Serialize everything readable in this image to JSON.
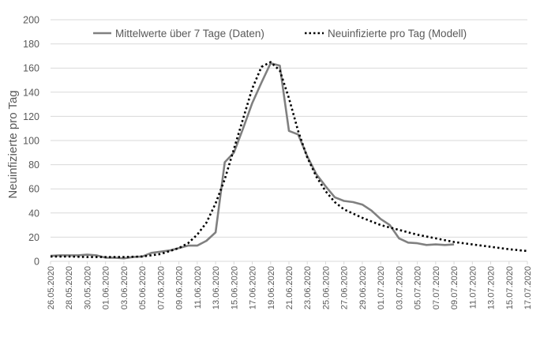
{
  "chart_data": {
    "type": "line",
    "title": "",
    "xlabel": "",
    "ylabel": "Neuinfizierte pro Tag",
    "ylim": [
      0,
      200
    ],
    "yticks": [
      0,
      20,
      40,
      60,
      80,
      100,
      120,
      140,
      160,
      180,
      200
    ],
    "x_range": [
      "26.05.2020",
      "17.07.2020"
    ],
    "x_tick_labels": [
      "26.05.2020",
      "28.05.2020",
      "30.05.2020",
      "01.06.2020",
      "03.06.2020",
      "05.06.2020",
      "07.06.2020",
      "09.06.2020",
      "11.06.2020",
      "13.06.2020",
      "15.06.2020",
      "17.06.2020",
      "19.06.2020",
      "21.06.2020",
      "23.06.2020",
      "25.06.2020",
      "27.06.2020",
      "29.06.2020",
      "01.07.2020",
      "03.07.2020",
      "05.07.2020",
      "07.07.2020",
      "09.07.2020",
      "11.07.2020",
      "13.07.2020",
      "15.07.2020",
      "17.07.2020"
    ],
    "grid": "horizontal",
    "legend_position": "top",
    "series": [
      {
        "name": "Mittelwerte über 7 Tage (Daten)",
        "style": "solid",
        "color": "#808080",
        "points": [
          [
            "26.05.2020",
            4.5
          ],
          [
            "27.05.2020",
            5
          ],
          [
            "28.05.2020",
            5
          ],
          [
            "29.05.2020",
            5
          ],
          [
            "30.05.2020",
            5.5
          ],
          [
            "31.05.2020",
            5
          ],
          [
            "01.06.2020",
            3
          ],
          [
            "02.06.2020",
            3
          ],
          [
            "03.06.2020",
            2.5
          ],
          [
            "04.06.2020",
            3.5
          ],
          [
            "05.06.2020",
            4
          ],
          [
            "06.06.2020",
            7
          ],
          [
            "07.06.2020",
            8
          ],
          [
            "08.06.2020",
            9
          ],
          [
            "09.06.2020",
            11
          ],
          [
            "10.06.2020",
            13
          ],
          [
            "11.06.2020",
            13
          ],
          [
            "12.06.2020",
            17
          ],
          [
            "13.06.2020",
            24
          ],
          [
            "14.06.2020",
            82
          ],
          [
            "15.06.2020",
            90
          ],
          [
            "16.06.2020",
            110
          ],
          [
            "17.06.2020",
            131
          ],
          [
            "18.06.2020",
            148
          ],
          [
            "19.06.2020",
            164
          ],
          [
            "20.06.2020",
            162
          ],
          [
            "21.06.2020",
            108
          ],
          [
            "22.06.2020",
            105
          ],
          [
            "23.06.2020",
            87
          ],
          [
            "24.06.2020",
            72
          ],
          [
            "25.06.2020",
            62
          ],
          [
            "26.06.2020",
            53
          ],
          [
            "27.06.2020",
            50
          ],
          [
            "28.06.2020",
            49
          ],
          [
            "29.06.2020",
            47
          ],
          [
            "30.06.2020",
            42
          ],
          [
            "01.07.2020",
            35
          ],
          [
            "02.07.2020",
            30
          ],
          [
            "03.07.2020",
            19
          ],
          [
            "04.07.2020",
            15.5
          ],
          [
            "05.07.2020",
            15
          ],
          [
            "06.07.2020",
            13.5
          ],
          [
            "07.07.2020",
            14
          ],
          [
            "08.07.2020",
            13.5
          ],
          [
            "09.07.2020",
            14
          ]
        ]
      },
      {
        "name": "Neuinfizierte pro Tag (Modell)",
        "style": "dotted",
        "color": "#000000",
        "points": [
          [
            "26.05.2020",
            4
          ],
          [
            "28.05.2020",
            4
          ],
          [
            "30.05.2020",
            3.5
          ],
          [
            "01.06.2020",
            3.5
          ],
          [
            "03.06.2020",
            3.5
          ],
          [
            "05.06.2020",
            4
          ],
          [
            "07.06.2020",
            6
          ],
          [
            "09.06.2020",
            11
          ],
          [
            "10.06.2020",
            15
          ],
          [
            "11.06.2020",
            22
          ],
          [
            "12.06.2020",
            32
          ],
          [
            "13.06.2020",
            48
          ],
          [
            "14.06.2020",
            68
          ],
          [
            "15.06.2020",
            93
          ],
          [
            "16.06.2020",
            118
          ],
          [
            "17.06.2020",
            143
          ],
          [
            "18.06.2020",
            161
          ],
          [
            "19.06.2020",
            165
          ],
          [
            "20.06.2020",
            158
          ],
          [
            "21.06.2020",
            135
          ],
          [
            "22.06.2020",
            108
          ],
          [
            "23.06.2020",
            86
          ],
          [
            "24.06.2020",
            70
          ],
          [
            "25.06.2020",
            58
          ],
          [
            "26.06.2020",
            49
          ],
          [
            "27.06.2020",
            43
          ],
          [
            "29.06.2020",
            36
          ],
          [
            "01.07.2020",
            30
          ],
          [
            "03.07.2020",
            26
          ],
          [
            "05.07.2020",
            22
          ],
          [
            "07.07.2020",
            19
          ],
          [
            "09.07.2020",
            16
          ],
          [
            "11.07.2020",
            14
          ],
          [
            "13.07.2020",
            12
          ],
          [
            "15.07.2020",
            10
          ],
          [
            "17.07.2020",
            8.5
          ]
        ]
      }
    ]
  }
}
